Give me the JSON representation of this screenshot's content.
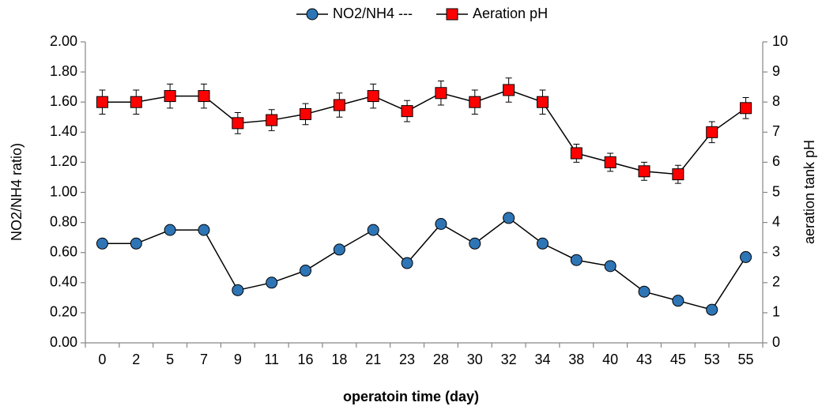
{
  "chart_data": {
    "type": "line",
    "x_label": "operatoin time (day)",
    "y_label": "NO2/NH4 ratio)",
    "y2_label": "aeration tank pH",
    "categories": [
      "0",
      "2",
      "5",
      "7",
      "9",
      "11",
      "16",
      "18",
      "21",
      "23",
      "28",
      "30",
      "32",
      "34",
      "38",
      "40",
      "43",
      "45",
      "53",
      "55"
    ],
    "series": [
      {
        "name": "NO2/NH4 ---",
        "color": "#2e75b6",
        "marker": "circle",
        "values": [
          0.66,
          0.66,
          0.75,
          0.75,
          0.35,
          0.4,
          0.48,
          0.62,
          0.75,
          0.53,
          0.79,
          0.66,
          0.83,
          0.66,
          0.55,
          0.51,
          0.34,
          0.28,
          0.22,
          0.57
        ],
        "errors": [
          0.02,
          0.02,
          0.02,
          0.02,
          0.02,
          0.02,
          0.02,
          0.02,
          0.02,
          0.02,
          0.03,
          0.02,
          0.03,
          0.02,
          0.02,
          0.02,
          0.02,
          0.02,
          0.02,
          0.02
        ]
      },
      {
        "name": "Aeration pH",
        "color": "#ff0000",
        "marker": "square",
        "axis": "y2",
        "values": [
          8.0,
          8.0,
          8.2,
          8.2,
          7.3,
          7.4,
          7.6,
          7.9,
          8.2,
          7.7,
          8.3,
          8.0,
          8.4,
          8.0,
          6.3,
          6.0,
          5.7,
          5.6,
          7.0,
          7.8
        ],
        "errors": [
          0.4,
          0.4,
          0.4,
          0.4,
          0.35,
          0.35,
          0.35,
          0.4,
          0.4,
          0.35,
          0.4,
          0.4,
          0.4,
          0.4,
          0.3,
          0.3,
          0.3,
          0.3,
          0.35,
          0.35
        ]
      }
    ],
    "ylim": [
      0,
      2
    ],
    "yticks": [
      {
        "value": 0,
        "label": "0.00"
      },
      {
        "value": 0.2,
        "label": "0.20"
      },
      {
        "value": 0.4,
        "label": "0.40"
      },
      {
        "value": 0.6,
        "label": "0.60"
      },
      {
        "value": 0.8,
        "label": "0.80"
      },
      {
        "value": 1,
        "label": "1.00"
      },
      {
        "value": 1.2,
        "label": "1.20"
      },
      {
        "value": 1.4,
        "label": "1.40"
      },
      {
        "value": 1.6,
        "label": "1.60"
      },
      {
        "value": 1.8,
        "label": "1.80"
      },
      {
        "value": 2,
        "label": "2.00"
      }
    ],
    "y2lim": [
      0,
      10
    ],
    "y2ticks": [
      0,
      1,
      2,
      3,
      4,
      5,
      6,
      7,
      8,
      9,
      10
    ],
    "grid": false,
    "legend": "top"
  }
}
